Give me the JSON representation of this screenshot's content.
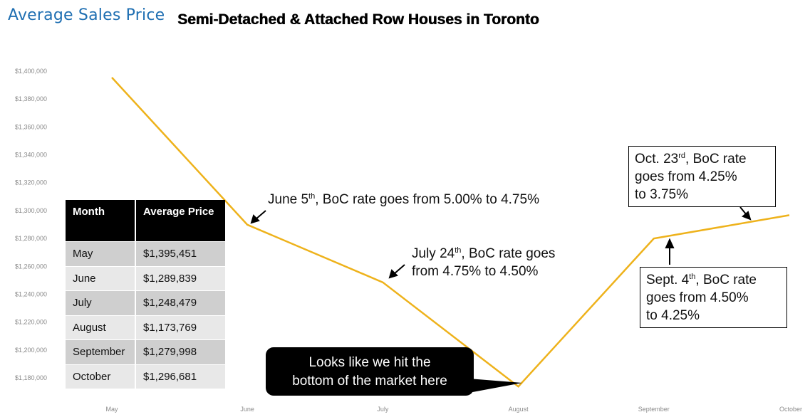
{
  "brand": "Average Sales Price",
  "title": "Semi-Detached & Attached Row Houses in Toronto",
  "chart_data": {
    "type": "line",
    "title": "Semi-Detached & Attached Row Houses in Toronto",
    "categories": [
      "May",
      "June",
      "July",
      "August",
      "September",
      "October"
    ],
    "series": [
      {
        "values": [
          1395451,
          1289839,
          1248479,
          1173769,
          1279998,
          1296681
        ],
        "color": "#eeb21b"
      }
    ],
    "ylim": [
      1170000,
      1410000
    ],
    "yticks": [
      1180000,
      1200000,
      1220000,
      1240000,
      1260000,
      1280000,
      1300000,
      1320000,
      1340000,
      1360000,
      1380000,
      1400000
    ],
    "ytick_labels": [
      "$1,180,000",
      "$1,200,000",
      "$1,220,000",
      "$1,240,000",
      "$1,260,000",
      "$1,280,000",
      "$1,300,000",
      "$1,320,000",
      "$1,340,000",
      "$1,360,000",
      "$1,380,000",
      "$1,400,000"
    ],
    "grid": false,
    "legend": "none"
  },
  "table": {
    "headers": [
      "Month",
      "Average Price"
    ],
    "rows": [
      [
        "May",
        "$1,395,451"
      ],
      [
        "June",
        "$1,289,839"
      ],
      [
        "July",
        "$1,248,479"
      ],
      [
        "August",
        "$1,173,769"
      ],
      [
        "September",
        "$1,279,998"
      ],
      [
        "October",
        "$1,296,681"
      ]
    ]
  },
  "annotations": {
    "june": {
      "pre": "June 5",
      "sup": "th",
      "post": ", BoC rate goes from 5.00% to 4.75%"
    },
    "july": {
      "pre": "July 24",
      "sup": "th",
      "post": ", BoC rate goes",
      "line2": "from 4.75% to 4.50%"
    },
    "sept": {
      "pre": "Sept. 4",
      "sup": "th",
      "post": ", BoC rate",
      "line2": "goes from 4.50%",
      "line3": "to 4.25%"
    },
    "oct": {
      "pre": "Oct. 23",
      "sup": "rd",
      "post": ", BoC rate",
      "line2": "goes from 4.25%",
      "line3": "to 3.75%"
    },
    "bottom_line1": "Looks like we hit the",
    "bottom_line2": "bottom of the market here"
  }
}
